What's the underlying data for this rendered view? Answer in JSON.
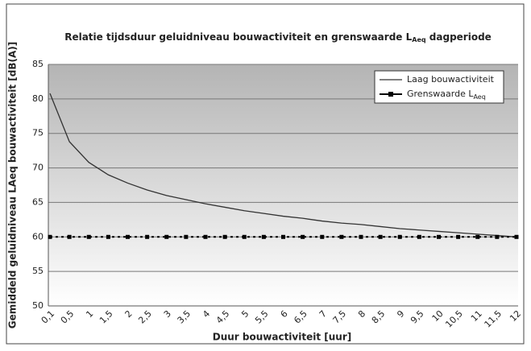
{
  "chart_data": {
    "type": "line",
    "title": [
      "Relatie tijdsduur geluidniveau bouwactiviteit en grenswaarde L",
      "Aeq",
      " dagperiode"
    ],
    "x_label": "Duur bouwactiviteit [uur]",
    "y_label": "Gemiddeld geluidniveau LAeq bouwactiviteit [dB(A)]",
    "categories": [
      "0,1",
      "0,5",
      "1",
      "1,5",
      "2",
      "2,5",
      "3",
      "3,5",
      "4",
      "4,5",
      "5",
      "5,5",
      "6",
      "6,5",
      "7",
      "7,5",
      "8",
      "8,5",
      "9",
      "9,5",
      "10",
      "10,5",
      "11",
      "11,5",
      "12"
    ],
    "series": [
      {
        "name": [
          "Laag bouwactiviteit"
        ],
        "color": "#333333",
        "marker": false,
        "values": [
          80.8,
          73.8,
          70.8,
          69.0,
          67.8,
          66.8,
          66.0,
          65.4,
          64.8,
          64.3,
          63.8,
          63.4,
          63.0,
          62.7,
          62.3,
          62.0,
          61.8,
          61.5,
          61.2,
          61.0,
          60.8,
          60.6,
          60.4,
          60.2,
          60.0
        ]
      },
      {
        "name": [
          "Grenswaarde L",
          "Aeq"
        ],
        "color": "#000000",
        "marker": true,
        "values": [
          60,
          60,
          60,
          60,
          60,
          60,
          60,
          60,
          60,
          60,
          60,
          60,
          60,
          60,
          60,
          60,
          60,
          60,
          60,
          60,
          60,
          60,
          60,
          60,
          60
        ]
      }
    ],
    "ylim": [
      50,
      85
    ],
    "yticks": [
      50,
      55,
      60,
      65,
      70,
      75,
      80,
      85
    ],
    "grid": true,
    "legend": "upper right"
  }
}
